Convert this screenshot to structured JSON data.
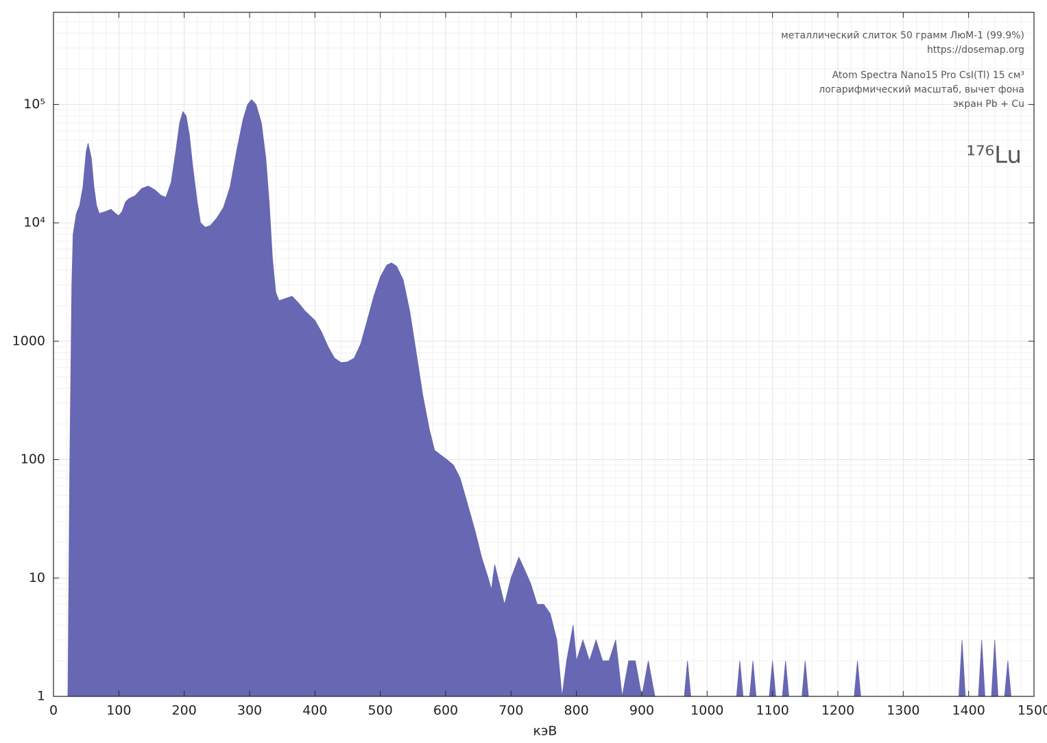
{
  "chart_data": {
    "type": "area",
    "x_label": "кэВ",
    "annotations": [
      "металлический слиток 50 грамм ЛюМ-1 (99.9%)",
      "https://dosemap.org",
      "Atom Spectra Nano15 Pro CsI(Tl) 15 см³",
      "логарифмический масштаб, вычет фона",
      "экран Pb + Cu"
    ],
    "isotope": "¹⁷⁶Lu",
    "color": "#6767b3",
    "y_scale": "log",
    "grid": true,
    "xlim": [
      0,
      1500
    ],
    "xticks": [
      0,
      100,
      200,
      300,
      400,
      500,
      600,
      700,
      800,
      900,
      1000,
      1100,
      1200,
      1300,
      1400,
      1500
    ],
    "ylim": [
      1,
      600000
    ],
    "yticks": [
      1,
      10,
      100,
      1000,
      {
        "value": 10000,
        "label": "10⁴"
      },
      {
        "value": 100000,
        "label": "10⁵"
      }
    ],
    "x": [
      20,
      22,
      25,
      28,
      30,
      35,
      40,
      45,
      50,
      53,
      58,
      62,
      66,
      70,
      80,
      88,
      95,
      100,
      105,
      110,
      115,
      125,
      135,
      145,
      155,
      165,
      172,
      180,
      187,
      193,
      198,
      203,
      208,
      213,
      220,
      225,
      232,
      240,
      250,
      260,
      270,
      280,
      290,
      297,
      303,
      310,
      318,
      325,
      330,
      335,
      340,
      345,
      355,
      365,
      375,
      385,
      400,
      410,
      420,
      430,
      440,
      450,
      460,
      470,
      480,
      490,
      500,
      510,
      517,
      525,
      535,
      545,
      555,
      565,
      575,
      583,
      592,
      602,
      612,
      622,
      632,
      645,
      655,
      665,
      670,
      675,
      680,
      690,
      700,
      712,
      720,
      730,
      740,
      750,
      760,
      770,
      778,
      785,
      795,
      800,
      810,
      820,
      830,
      840,
      850,
      860,
      870,
      880,
      890,
      900,
      910,
      920,
      930,
      965,
      970,
      975,
      1045,
      1050,
      1055,
      1065,
      1070,
      1075,
      1095,
      1100,
      1105,
      1115,
      1120,
      1125,
      1145,
      1150,
      1155,
      1225,
      1230,
      1235,
      1385,
      1390,
      1395,
      1415,
      1420,
      1425,
      1435,
      1440,
      1445,
      1455,
      1460,
      1465,
      1470
    ],
    "values": [
      1,
      1,
      100,
      3000,
      8000,
      12000,
      14000,
      20000,
      40000,
      47000,
      35000,
      20000,
      14000,
      12000,
      12500,
      13000,
      12000,
      11500,
      12500,
      15000,
      16000,
      17000,
      19500,
      20500,
      19000,
      17000,
      16500,
      22000,
      40000,
      70000,
      87000,
      80000,
      55000,
      30000,
      15000,
      10000,
      9200,
      9500,
      11000,
      13500,
      20000,
      40000,
      75000,
      100000,
      110000,
      100000,
      70000,
      35000,
      15000,
      5000,
      2600,
      2200,
      2300,
      2400,
      2100,
      1800,
      1500,
      1200,
      900,
      720,
      660,
      670,
      720,
      950,
      1500,
      2400,
      3500,
      4400,
      4600,
      4300,
      3300,
      1800,
      800,
      350,
      180,
      120,
      110,
      100,
      90,
      70,
      45,
      25,
      15,
      10,
      8,
      13,
      10,
      6,
      10,
      15,
      12,
      9,
      6,
      6,
      5,
      3,
      1,
      2,
      4,
      2,
      3,
      2,
      3,
      2,
      2,
      3,
      1,
      2,
      2,
      1,
      2,
      1,
      1,
      1,
      2,
      1,
      1,
      2,
      1,
      1,
      2,
      1,
      1,
      2,
      1,
      1,
      2,
      1,
      1,
      2,
      1,
      1,
      2,
      1,
      1,
      3,
      1,
      1,
      3,
      1,
      1,
      3,
      1,
      1,
      2,
      1,
      1
    ]
  }
}
